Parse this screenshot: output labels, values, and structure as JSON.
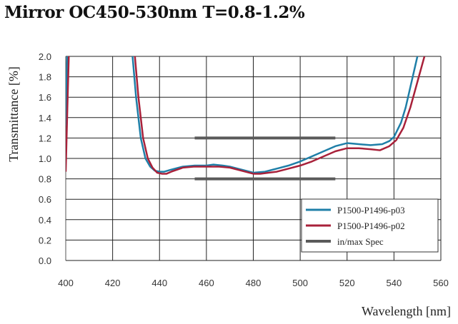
{
  "chart_data": {
    "type": "line",
    "title": "Mirror OC450-530nm T=0.8-1.2%",
    "xlabel": "Wavelength [nm]",
    "ylabel": "Transmittance [%]",
    "xlim": [
      400,
      560
    ],
    "ylim": [
      0,
      2.0
    ],
    "xticks": [
      "400",
      "420",
      "440",
      "460",
      "480",
      "500",
      "520",
      "540",
      "560"
    ],
    "yticks": [
      "0.0",
      "0.2",
      "0.4",
      "0.6",
      "0.8",
      "1.0",
      "1.2",
      "1.4",
      "1.6",
      "1.8",
      "2.0"
    ],
    "grid": true,
    "legend_position": "bottom-right",
    "series": [
      {
        "name": "P1500-P1496-p03",
        "color": "#1f7fa8",
        "segments": [
          [
            [
              400,
              1.32
            ],
            [
              400.3,
              1.7
            ],
            [
              400.6,
              2.0
            ]
          ],
          [
            [
              428.5,
              2.0
            ],
            [
              430,
              1.6
            ],
            [
              432,
              1.2
            ],
            [
              434,
              1.0
            ],
            [
              436,
              0.92
            ],
            [
              438,
              0.88
            ],
            [
              440,
              0.87
            ],
            [
              442,
              0.87
            ],
            [
              445,
              0.89
            ],
            [
              450,
              0.92
            ],
            [
              455,
              0.93
            ],
            [
              460,
              0.93
            ],
            [
              463,
              0.94
            ],
            [
              467,
              0.93
            ],
            [
              470,
              0.92
            ],
            [
              475,
              0.89
            ],
            [
              480,
              0.86
            ],
            [
              485,
              0.87
            ],
            [
              490,
              0.9
            ],
            [
              495,
              0.93
            ],
            [
              500,
              0.97
            ],
            [
              505,
              1.02
            ],
            [
              510,
              1.07
            ],
            [
              515,
              1.12
            ],
            [
              520,
              1.15
            ],
            [
              525,
              1.14
            ],
            [
              530,
              1.13
            ],
            [
              535,
              1.14
            ],
            [
              538,
              1.17
            ],
            [
              540,
              1.21
            ],
            [
              543,
              1.35
            ],
            [
              545,
              1.5
            ],
            [
              547,
              1.7
            ],
            [
              549,
              1.9
            ],
            [
              550,
              2.0
            ]
          ]
        ]
      },
      {
        "name": "P1500-P1496-p02",
        "color": "#a8213a",
        "segments": [
          [
            [
              400,
              0.87
            ],
            [
              400.7,
              1.5
            ],
            [
              401.3,
              2.0
            ]
          ],
          [
            [
              429.5,
              2.0
            ],
            [
              431,
              1.6
            ],
            [
              433,
              1.2
            ],
            [
              435,
              1.0
            ],
            [
              437,
              0.91
            ],
            [
              439,
              0.86
            ],
            [
              441,
              0.85
            ],
            [
              443,
              0.85
            ],
            [
              445,
              0.87
            ],
            [
              450,
              0.91
            ],
            [
              455,
              0.92
            ],
            [
              460,
              0.92
            ],
            [
              465,
              0.92
            ],
            [
              470,
              0.91
            ],
            [
              475,
              0.88
            ],
            [
              480,
              0.85
            ],
            [
              483,
              0.85
            ],
            [
              490,
              0.87
            ],
            [
              495,
              0.9
            ],
            [
              500,
              0.93
            ],
            [
              505,
              0.97
            ],
            [
              510,
              1.02
            ],
            [
              515,
              1.07
            ],
            [
              520,
              1.1
            ],
            [
              525,
              1.1
            ],
            [
              530,
              1.09
            ],
            [
              534,
              1.08
            ],
            [
              538,
              1.12
            ],
            [
              541,
              1.18
            ],
            [
              544,
              1.3
            ],
            [
              547,
              1.5
            ],
            [
              550,
              1.75
            ],
            [
              553,
              2.0
            ]
          ]
        ]
      },
      {
        "name": "in/max Spec",
        "color": "#5a5a5a",
        "segments": [
          [
            [
              455,
              1.2
            ],
            [
              515,
              1.2
            ]
          ],
          [
            [
              455,
              0.8
            ],
            [
              515,
              0.8
            ]
          ]
        ]
      }
    ]
  }
}
